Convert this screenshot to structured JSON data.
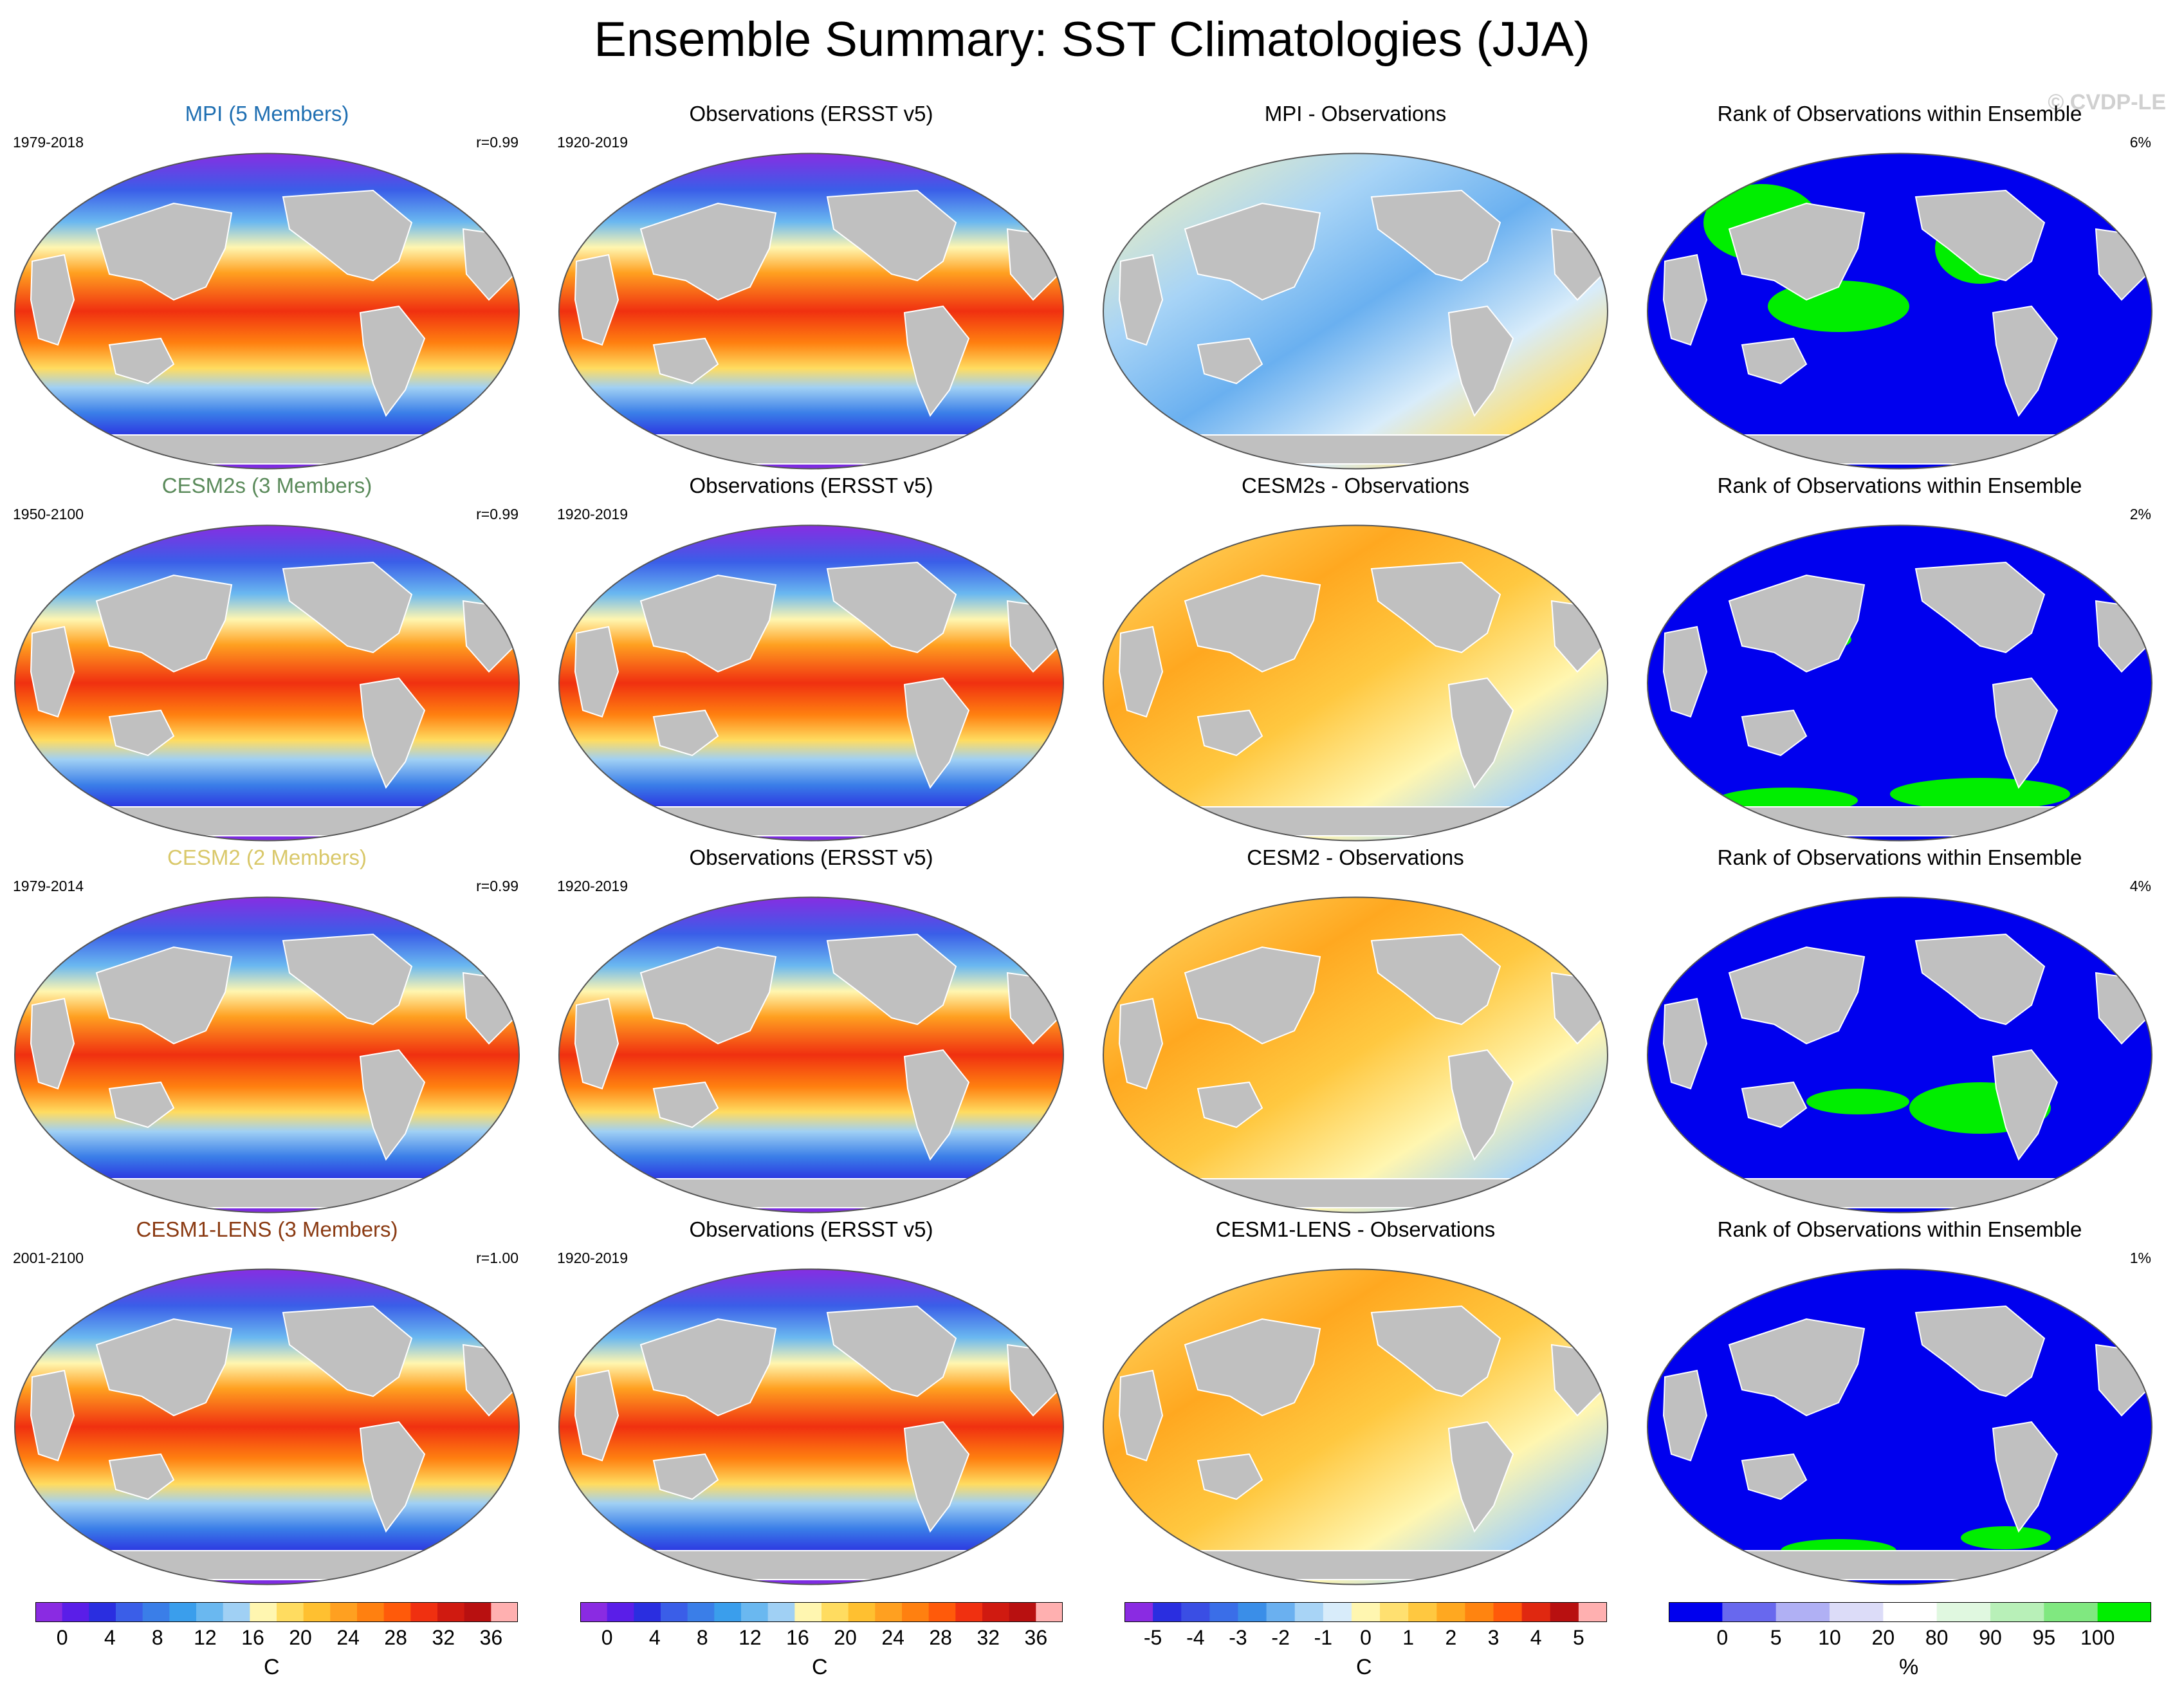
{
  "figure": {
    "title": "Ensemble Summary: SST Climatologies (JJA)",
    "watermark": "© CVDP-LE"
  },
  "rows": [
    {
      "model": {
        "title": "MPI (5 Members)",
        "period": "1979-2018",
        "corr": "r=0.99",
        "title_color": "#1f6fb2"
      },
      "obs": {
        "title": "Observations (ERSST v5)",
        "period": "1920-2019"
      },
      "diff": {
        "title": "MPI - Observations"
      },
      "rank": {
        "title": "Rank of Observations within Ensemble",
        "pct": "6%"
      }
    },
    {
      "model": {
        "title": "CESM2s (3 Members)",
        "period": "1950-2100",
        "corr": "r=0.99",
        "title_color": "#5a8a5a"
      },
      "obs": {
        "title": "Observations (ERSST v5)",
        "period": "1920-2019"
      },
      "diff": {
        "title": "CESM2s - Observations"
      },
      "rank": {
        "title": "Rank of Observations within Ensemble",
        "pct": "2%"
      }
    },
    {
      "model": {
        "title": "CESM2 (2 Members)",
        "period": "1979-2014",
        "corr": "r=0.99",
        "title_color": "#d9c86a"
      },
      "obs": {
        "title": "Observations (ERSST v5)",
        "period": "1920-2019"
      },
      "diff": {
        "title": "CESM2 - Observations"
      },
      "rank": {
        "title": "Rank of Observations within Ensemble",
        "pct": "4%"
      }
    },
    {
      "model": {
        "title": "CESM1-LENS (3 Members)",
        "period": "2001-2100",
        "corr": "r=1.00",
        "title_color": "#8a3a12"
      },
      "obs": {
        "title": "Observations (ERSST v5)",
        "period": "1920-2019"
      },
      "diff": {
        "title": "CESM1-LENS - Observations"
      },
      "rank": {
        "title": "Rank of Observations within Ensemble",
        "pct": "1%"
      }
    }
  ],
  "colorbars": {
    "sst": {
      "unit": "C",
      "ticks": [
        "0",
        "4",
        "8",
        "12",
        "16",
        "20",
        "24",
        "28",
        "32",
        "36"
      ],
      "colors": [
        "#8a2be2",
        "#5a1ee8",
        "#2a2ee0",
        "#3a5ee8",
        "#3a7ee8",
        "#3a9eec",
        "#6ab8f0",
        "#a0d0f4",
        "#fff6b0",
        "#ffdc60",
        "#ffc030",
        "#ffa020",
        "#ff8010",
        "#ff5a0a",
        "#f03010",
        "#d01a10",
        "#b81010",
        "#ffb0b0"
      ]
    },
    "diff": {
      "unit": "C",
      "ticks": [
        "-5",
        "-4",
        "-3",
        "-2",
        "-1",
        "0",
        "1",
        "2",
        "3",
        "4",
        "5"
      ],
      "colors": [
        "#8a2be2",
        "#2a2ee0",
        "#3a4ee4",
        "#3a6ee8",
        "#3a8ee8",
        "#6ab0f0",
        "#a8d4f6",
        "#d8ecfa",
        "#fff6b0",
        "#ffe070",
        "#ffc840",
        "#ffa820",
        "#ff8410",
        "#ff5a0a",
        "#e02810",
        "#b81010",
        "#ffb0b0"
      ]
    },
    "rank": {
      "unit": "%",
      "ticks": [
        "0",
        "5",
        "10",
        "20",
        "80",
        "90",
        "95",
        "100"
      ],
      "colors": [
        "#0000ee",
        "#6868ee",
        "#b0b0f4",
        "#dcdcf8",
        "#ffffff",
        "#e0f8e0",
        "#b8f0b8",
        "#80e880",
        "#00ee00"
      ]
    }
  },
  "colors": {
    "land": "#c0c0c0",
    "sst_warm": "#ff5a0a",
    "sst_cold": "#8a2be2",
    "rank_low": "#0000ee",
    "rank_high": "#00ee00"
  }
}
